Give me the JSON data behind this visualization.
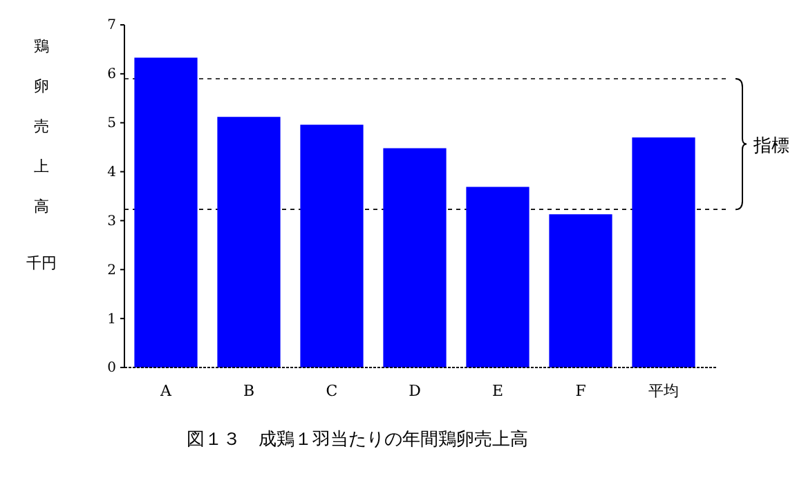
{
  "chart_data": {
    "type": "bar",
    "title": "図１３　成鶏１羽当たりの年間鶏卵売上高",
    "ylabel": "鶏卵売上高",
    "categories": [
      "A",
      "B",
      "C",
      "D",
      "E",
      "F",
      "平均"
    ],
    "values": [
      6.33,
      5.12,
      4.96,
      4.48,
      3.69,
      3.13,
      4.7
    ],
    "color": "#0000ff",
    "ylim": [
      0,
      7
    ],
    "yticks": [
      0,
      1,
      2,
      3,
      4,
      5,
      6,
      7
    ],
    "ref_lines": [
      {
        "axis": "y",
        "value": 5.9,
        "line_style": "dashed"
      },
      {
        "axis": "y",
        "value": 3.23,
        "line_style": "dashed"
      }
    ],
    "annotations": [
      "千円",
      "指標"
    ]
  }
}
